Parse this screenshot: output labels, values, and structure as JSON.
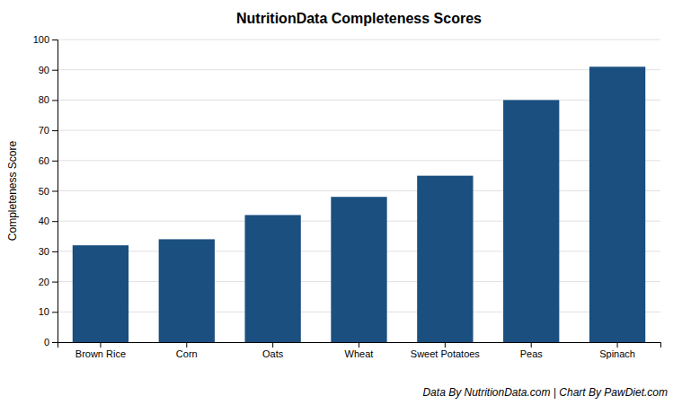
{
  "chart_data": {
    "type": "bar",
    "title": "NutritionData Completeness Scores",
    "categories": [
      "Brown Rice",
      "Corn",
      "Oats",
      "Wheat",
      "Sweet Potatoes",
      "Peas",
      "Spinach"
    ],
    "values": [
      32,
      34,
      42,
      48,
      55,
      80,
      91
    ],
    "color": "#1a4f80",
    "ylabel": "Completeness Score",
    "ylim": [
      0,
      100
    ],
    "yticks": [
      0,
      10,
      20,
      30,
      40,
      50,
      60,
      70,
      80,
      90,
      100
    ],
    "grid": true,
    "footnote": "Data By NutritionData.com | Chart By PawDiet.com"
  }
}
